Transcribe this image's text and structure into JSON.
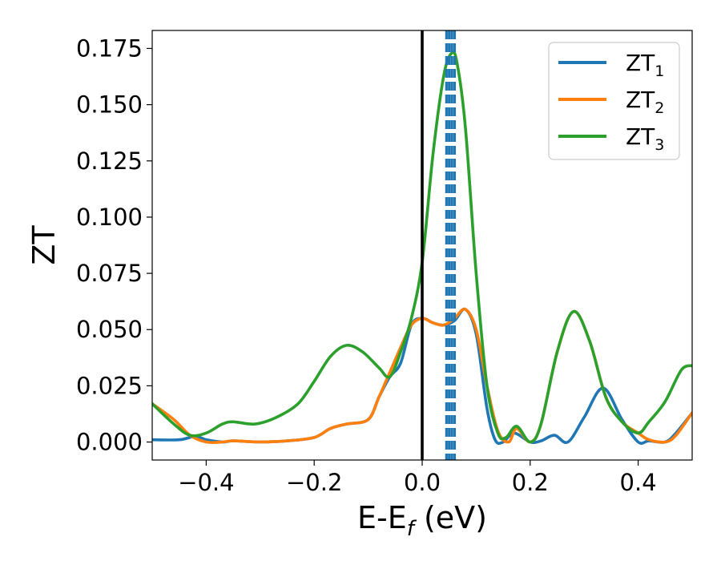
{
  "chart_data": {
    "type": "line",
    "xlabel_main": "E-E",
    "xlabel_sub": "f",
    "xlabel_tail": " (eV)",
    "ylabel": "ZT",
    "xlim": [
      -0.5,
      0.5
    ],
    "ylim": [
      -0.008,
      0.183
    ],
    "xticks": [
      -0.4,
      -0.2,
      0.0,
      0.2,
      0.4
    ],
    "xtick_labels": [
      "−0.4",
      "−0.2",
      "0.0",
      "0.2",
      "0.4"
    ],
    "yticks": [
      0.0,
      0.025,
      0.05,
      0.075,
      0.1,
      0.125,
      0.15,
      0.175
    ],
    "ytick_labels": [
      "0.000",
      "0.025",
      "0.050",
      "0.075",
      "0.100",
      "0.125",
      "0.150",
      "0.175"
    ],
    "grid": false,
    "legend_placement": "top-right",
    "legend": [
      {
        "main": "ZT",
        "sub": "1",
        "color": "#1f77b4"
      },
      {
        "main": "ZT",
        "sub": "2",
        "color": "#ff7f0e"
      },
      {
        "main": "ZT",
        "sub": "3",
        "color": "#2ca02c"
      }
    ],
    "vertical_lines": [
      {
        "x": 0.0,
        "color": "#000000",
        "style": "solid"
      },
      {
        "x": 0.045,
        "color": "#1f77b4",
        "style": "dashed"
      },
      {
        "x": 0.05,
        "color": "#1f77b4",
        "style": "dashed"
      },
      {
        "x": 0.055,
        "color": "#1f77b4",
        "style": "dashed"
      },
      {
        "x": 0.06,
        "color": "#1f77b4",
        "style": "dashed"
      }
    ],
    "series": [
      {
        "color": "#1f77b4",
        "points": [
          [
            -0.5,
            0.001
          ],
          [
            -0.45,
            0.001
          ],
          [
            -0.42,
            0.0025
          ],
          [
            -0.4,
            0.001
          ],
          [
            -0.37,
            0.0
          ],
          [
            -0.35,
            0.0005
          ],
          [
            -0.3,
            0.0
          ],
          [
            -0.25,
            0.0005
          ],
          [
            -0.2,
            0.002
          ],
          [
            -0.17,
            0.006
          ],
          [
            -0.14,
            0.008
          ],
          [
            -0.1,
            0.01
          ],
          [
            -0.08,
            0.02
          ],
          [
            -0.06,
            0.029
          ],
          [
            -0.04,
            0.035
          ],
          [
            -0.02,
            0.052
          ],
          [
            0.0,
            0.055
          ],
          [
            0.02,
            0.053
          ],
          [
            0.04,
            0.052
          ],
          [
            0.06,
            0.054
          ],
          [
            0.08,
            0.059
          ],
          [
            0.1,
            0.048
          ],
          [
            0.12,
            0.015
          ],
          [
            0.135,
            0.001
          ],
          [
            0.15,
            0.0
          ],
          [
            0.17,
            0.004
          ],
          [
            0.2,
            0.0
          ],
          [
            0.22,
            0.0005
          ],
          [
            0.245,
            0.003
          ],
          [
            0.27,
            0.0
          ],
          [
            0.3,
            0.011
          ],
          [
            0.335,
            0.024
          ],
          [
            0.37,
            0.01
          ],
          [
            0.4,
            0.0
          ],
          [
            0.42,
            0.0005
          ],
          [
            0.45,
            0.0
          ],
          [
            0.47,
            0.004
          ],
          [
            0.5,
            0.013
          ]
        ]
      },
      {
        "color": "#ff7f0e",
        "points": [
          [
            -0.5,
            0.017
          ],
          [
            -0.46,
            0.01
          ],
          [
            -0.43,
            0.003
          ],
          [
            -0.4,
            0.0
          ],
          [
            -0.37,
            0.0
          ],
          [
            -0.35,
            0.0005
          ],
          [
            -0.3,
            0.0
          ],
          [
            -0.25,
            0.0005
          ],
          [
            -0.2,
            0.002
          ],
          [
            -0.17,
            0.006
          ],
          [
            -0.14,
            0.008
          ],
          [
            -0.1,
            0.01
          ],
          [
            -0.08,
            0.02
          ],
          [
            -0.06,
            0.031
          ],
          [
            -0.04,
            0.042
          ],
          [
            -0.02,
            0.052
          ],
          [
            0.0,
            0.055
          ],
          [
            0.02,
            0.053
          ],
          [
            0.04,
            0.052
          ],
          [
            0.06,
            0.055
          ],
          [
            0.08,
            0.059
          ],
          [
            0.1,
            0.05
          ],
          [
            0.12,
            0.025
          ],
          [
            0.14,
            0.005
          ],
          [
            0.16,
            0.0
          ],
          [
            0.175,
            0.006
          ],
          [
            0.2,
            0.0
          ],
          [
            0.22,
            0.008
          ],
          [
            0.25,
            0.04
          ],
          [
            0.28,
            0.058
          ],
          [
            0.31,
            0.045
          ],
          [
            0.34,
            0.02
          ],
          [
            0.37,
            0.009
          ],
          [
            0.4,
            0.004
          ],
          [
            0.42,
            0.001
          ],
          [
            0.45,
            0.0
          ],
          [
            0.47,
            0.003
          ],
          [
            0.5,
            0.013
          ]
        ]
      },
      {
        "color": "#2ca02c",
        "points": [
          [
            -0.5,
            0.017
          ],
          [
            -0.46,
            0.008
          ],
          [
            -0.43,
            0.003
          ],
          [
            -0.4,
            0.004
          ],
          [
            -0.37,
            0.008
          ],
          [
            -0.35,
            0.009
          ],
          [
            -0.31,
            0.008
          ],
          [
            -0.27,
            0.011
          ],
          [
            -0.23,
            0.017
          ],
          [
            -0.2,
            0.027
          ],
          [
            -0.17,
            0.038
          ],
          [
            -0.14,
            0.043
          ],
          [
            -0.11,
            0.04
          ],
          [
            -0.08,
            0.033
          ],
          [
            -0.06,
            0.029
          ],
          [
            -0.04,
            0.04
          ],
          [
            -0.02,
            0.055
          ],
          [
            0.0,
            0.08
          ],
          [
            0.02,
            0.128
          ],
          [
            0.04,
            0.163
          ],
          [
            0.055,
            0.173
          ],
          [
            0.065,
            0.168
          ],
          [
            0.08,
            0.14
          ],
          [
            0.1,
            0.075
          ],
          [
            0.12,
            0.025
          ],
          [
            0.14,
            0.004
          ],
          [
            0.155,
            0.002
          ],
          [
            0.175,
            0.007
          ],
          [
            0.2,
            0.0
          ],
          [
            0.22,
            0.008
          ],
          [
            0.25,
            0.04
          ],
          [
            0.28,
            0.058
          ],
          [
            0.31,
            0.045
          ],
          [
            0.34,
            0.02
          ],
          [
            0.37,
            0.009
          ],
          [
            0.4,
            0.004
          ],
          [
            0.42,
            0.009
          ],
          [
            0.45,
            0.018
          ],
          [
            0.48,
            0.032
          ],
          [
            0.5,
            0.034
          ]
        ]
      }
    ]
  }
}
